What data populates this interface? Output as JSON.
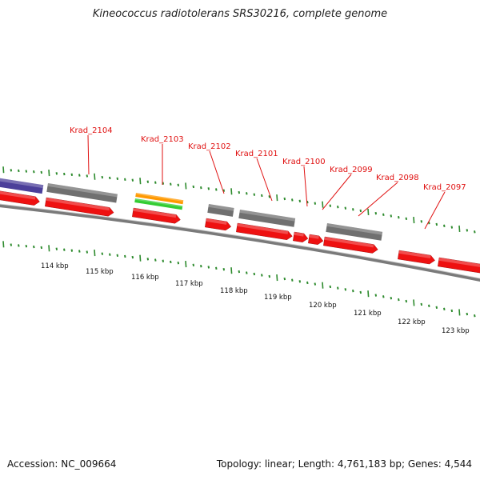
{
  "title": "Kineococcus radiotolerans SRS30216, complete genome",
  "footer": {
    "accession": "Accession: NC_009664",
    "stats": "Topology: linear; Length: 4,761,183 bp; Genes: 4,544"
  },
  "colors": {
    "cds": "#ee1111",
    "gene": "#707070",
    "rna_orange": "#ff9900",
    "rna_green": "#33cc33",
    "repeat": "#4b3f9a",
    "backbone": "#7a7a7a",
    "ticks": "#2e8b2e",
    "label": "#e01010"
  },
  "locus_labels": [
    "Krad_2104",
    "Krad_2103",
    "Krad_2102",
    "Krad_2101",
    "Krad_2100",
    "Krad_2099",
    "Krad_2098",
    "Krad_2097"
  ],
  "scale_labels": [
    "114 kbp",
    "115 kbp",
    "116 kbp",
    "117 kbp",
    "118 kbp",
    "119 kbp",
    "120 kbp",
    "121 kbp",
    "122 kbp",
    "123 kbp"
  ]
}
